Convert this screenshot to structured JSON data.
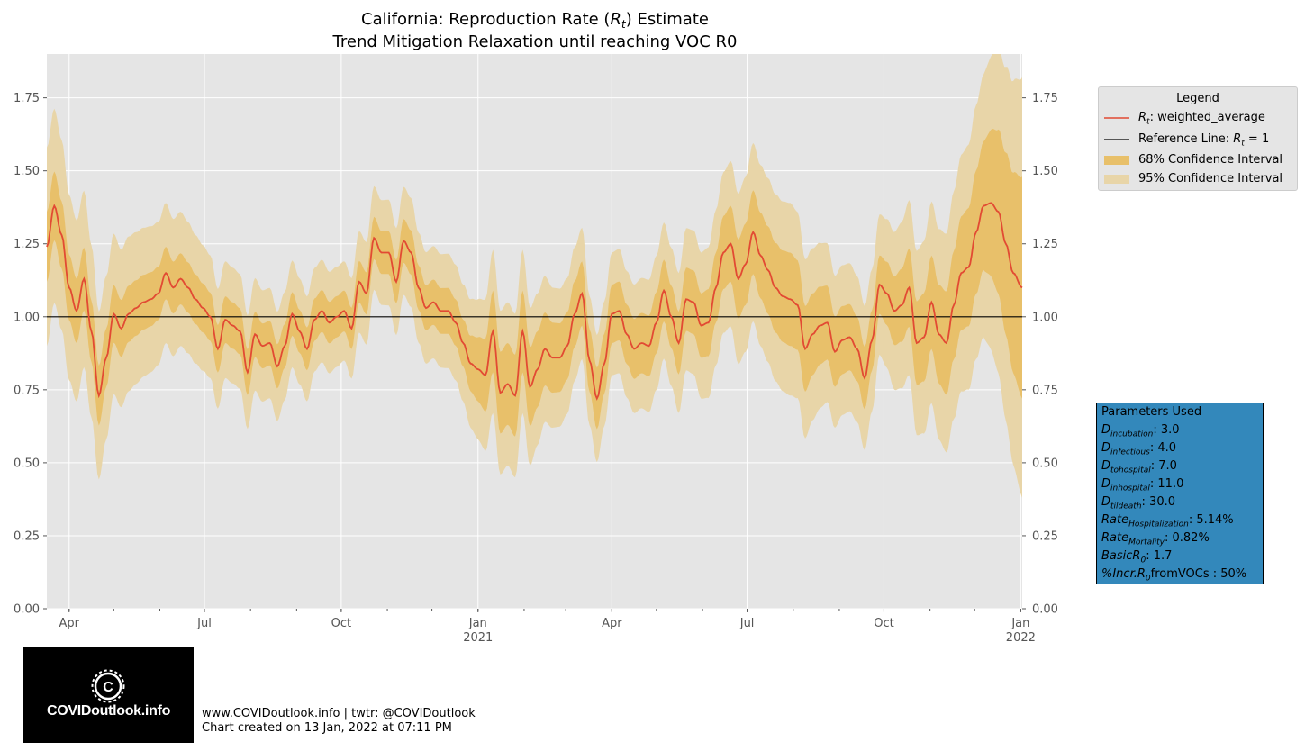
{
  "chart_data": {
    "type": "line",
    "title_line1": "California: Reproduction Rate (Rt) Estimate",
    "title_line2": "Trend Mitigation Relaxation until reaching VOC R0",
    "x_range": [
      "2020-03-17",
      "2022-01-02"
    ],
    "ylim": [
      0,
      1.9
    ],
    "y_ticks": [
      "0.00",
      "0.25",
      "0.50",
      "0.75",
      "1.00",
      "1.25",
      "1.50",
      "1.75"
    ],
    "x_ticks": [
      {
        "date": "2020-04-01",
        "label": "Apr",
        "sub": ""
      },
      {
        "date": "2020-07-01",
        "label": "Jul",
        "sub": ""
      },
      {
        "date": "2020-10-01",
        "label": "Oct",
        "sub": ""
      },
      {
        "date": "2021-01-01",
        "label": "Jan",
        "sub": "2021"
      },
      {
        "date": "2021-04-01",
        "label": "Apr",
        "sub": ""
      },
      {
        "date": "2021-07-01",
        "label": "Jul",
        "sub": ""
      },
      {
        "date": "2021-10-01",
        "label": "Oct",
        "sub": ""
      },
      {
        "date": "2022-01-01",
        "label": "Jan",
        "sub": "2022"
      }
    ],
    "reference_line": 1.0,
    "series": [
      {
        "name": "Rt: weighted_average",
        "color": "#e24a33",
        "points": [
          [
            "2020-03-17",
            1.24
          ],
          [
            "2020-03-22",
            1.38
          ],
          [
            "2020-03-27",
            1.28
          ],
          [
            "2020-04-01",
            1.1
          ],
          [
            "2020-04-06",
            1.02
          ],
          [
            "2020-04-11",
            1.13
          ],
          [
            "2020-04-16",
            0.95
          ],
          [
            "2020-04-21",
            0.73
          ],
          [
            "2020-04-26",
            0.86
          ],
          [
            "2020-05-01",
            1.01
          ],
          [
            "2020-05-06",
            0.96
          ],
          [
            "2020-05-11",
            1.01
          ],
          [
            "2020-05-16",
            1.03
          ],
          [
            "2020-05-21",
            1.05
          ],
          [
            "2020-05-26",
            1.06
          ],
          [
            "2020-05-31",
            1.08
          ],
          [
            "2020-06-05",
            1.15
          ],
          [
            "2020-06-10",
            1.1
          ],
          [
            "2020-06-15",
            1.13
          ],
          [
            "2020-06-20",
            1.1
          ],
          [
            "2020-06-25",
            1.06
          ],
          [
            "2020-06-30",
            1.03
          ],
          [
            "2020-07-05",
            1.0
          ],
          [
            "2020-07-10",
            0.89
          ],
          [
            "2020-07-15",
            0.99
          ],
          [
            "2020-07-20",
            0.97
          ],
          [
            "2020-07-25",
            0.95
          ],
          [
            "2020-07-30",
            0.81
          ],
          [
            "2020-08-04",
            0.94
          ],
          [
            "2020-08-09",
            0.9
          ],
          [
            "2020-08-14",
            0.91
          ],
          [
            "2020-08-19",
            0.83
          ],
          [
            "2020-08-24",
            0.9
          ],
          [
            "2020-08-29",
            1.01
          ],
          [
            "2020-09-03",
            0.95
          ],
          [
            "2020-09-08",
            0.89
          ],
          [
            "2020-09-13",
            0.99
          ],
          [
            "2020-09-18",
            1.02
          ],
          [
            "2020-09-23",
            0.98
          ],
          [
            "2020-09-28",
            1.0
          ],
          [
            "2020-10-03",
            1.02
          ],
          [
            "2020-10-08",
            0.96
          ],
          [
            "2020-10-13",
            1.12
          ],
          [
            "2020-10-18",
            1.08
          ],
          [
            "2020-10-23",
            1.27
          ],
          [
            "2020-10-28",
            1.22
          ],
          [
            "2020-11-02",
            1.22
          ],
          [
            "2020-11-07",
            1.12
          ],
          [
            "2020-11-12",
            1.26
          ],
          [
            "2020-11-17",
            1.22
          ],
          [
            "2020-11-22",
            1.1
          ],
          [
            "2020-11-27",
            1.03
          ],
          [
            "2020-12-02",
            1.05
          ],
          [
            "2020-12-07",
            1.02
          ],
          [
            "2020-12-12",
            1.02
          ],
          [
            "2020-12-17",
            0.98
          ],
          [
            "2020-12-22",
            0.91
          ],
          [
            "2020-12-27",
            0.84
          ],
          [
            "2021-01-01",
            0.82
          ],
          [
            "2021-01-06",
            0.8
          ],
          [
            "2021-01-11",
            0.95
          ],
          [
            "2021-01-16",
            0.74
          ],
          [
            "2021-01-21",
            0.77
          ],
          [
            "2021-01-26",
            0.73
          ],
          [
            "2021-01-31",
            0.95
          ],
          [
            "2021-02-05",
            0.76
          ],
          [
            "2021-02-10",
            0.82
          ],
          [
            "2021-02-15",
            0.89
          ],
          [
            "2021-02-20",
            0.86
          ],
          [
            "2021-02-25",
            0.86
          ],
          [
            "2021-03-02",
            0.9
          ],
          [
            "2021-03-07",
            1.01
          ],
          [
            "2021-03-12",
            1.08
          ],
          [
            "2021-03-17",
            0.85
          ],
          [
            "2021-03-22",
            0.72
          ],
          [
            "2021-03-27",
            0.84
          ],
          [
            "2021-04-01",
            1.01
          ],
          [
            "2021-04-06",
            1.02
          ],
          [
            "2021-04-11",
            0.94
          ],
          [
            "2021-04-16",
            0.89
          ],
          [
            "2021-04-21",
            0.91
          ],
          [
            "2021-04-26",
            0.9
          ],
          [
            "2021-05-01",
            0.98
          ],
          [
            "2021-05-06",
            1.09
          ],
          [
            "2021-05-11",
            1.0
          ],
          [
            "2021-05-16",
            0.91
          ],
          [
            "2021-05-21",
            1.06
          ],
          [
            "2021-05-26",
            1.05
          ],
          [
            "2021-05-31",
            0.97
          ],
          [
            "2021-06-05",
            0.98
          ],
          [
            "2021-06-10",
            1.1
          ],
          [
            "2021-06-15",
            1.22
          ],
          [
            "2021-06-20",
            1.25
          ],
          [
            "2021-06-25",
            1.13
          ],
          [
            "2021-06-30",
            1.18
          ],
          [
            "2021-07-05",
            1.29
          ],
          [
            "2021-07-10",
            1.21
          ],
          [
            "2021-07-15",
            1.16
          ],
          [
            "2021-07-20",
            1.1
          ],
          [
            "2021-07-25",
            1.07
          ],
          [
            "2021-07-30",
            1.06
          ],
          [
            "2021-08-04",
            1.04
          ],
          [
            "2021-08-09",
            0.89
          ],
          [
            "2021-08-14",
            0.94
          ],
          [
            "2021-08-19",
            0.97
          ],
          [
            "2021-08-24",
            0.98
          ],
          [
            "2021-08-29",
            0.88
          ],
          [
            "2021-09-03",
            0.92
          ],
          [
            "2021-09-08",
            0.93
          ],
          [
            "2021-09-13",
            0.89
          ],
          [
            "2021-09-18",
            0.79
          ],
          [
            "2021-09-23",
            0.92
          ],
          [
            "2021-09-28",
            1.11
          ],
          [
            "2021-10-03",
            1.08
          ],
          [
            "2021-10-08",
            1.02
          ],
          [
            "2021-10-13",
            1.04
          ],
          [
            "2021-10-18",
            1.1
          ],
          [
            "2021-10-23",
            0.91
          ],
          [
            "2021-10-28",
            0.93
          ],
          [
            "2021-11-02",
            1.05
          ],
          [
            "2021-11-07",
            0.94
          ],
          [
            "2021-11-12",
            0.91
          ],
          [
            "2021-11-17",
            1.04
          ],
          [
            "2021-11-22",
            1.15
          ],
          [
            "2021-11-27",
            1.17
          ],
          [
            "2021-12-02",
            1.29
          ],
          [
            "2021-12-07",
            1.38
          ],
          [
            "2021-12-12",
            1.39
          ],
          [
            "2021-12-17",
            1.36
          ],
          [
            "2021-12-22",
            1.25
          ],
          [
            "2021-12-27",
            1.15
          ],
          [
            "2022-01-02",
            1.1
          ]
        ]
      }
    ],
    "legend": {
      "title": "Legend",
      "placement": "right, outside plot, top",
      "items": [
        {
          "label": "Rt: weighted_average",
          "kind": "line",
          "color": "#e24a33"
        },
        {
          "label": "Reference Line: Rt = 1",
          "kind": "line",
          "color": "#000000"
        },
        {
          "label": "68% Confidence Interval",
          "kind": "patch",
          "color": "#e8c06a"
        },
        {
          "label": "95% Confidence Interval",
          "kind": "patch",
          "color": "#e8d5a8"
        }
      ]
    },
    "bands": {
      "ci68_color": "#e8c06a",
      "ci95_color": "#e8d5a8",
      "ci68_half_width": [
        [
          0,
          0.12
        ],
        [
          40,
          0.1
        ],
        [
          120,
          0.08
        ],
        [
          200,
          0.07
        ],
        [
          280,
          0.08
        ],
        [
          300,
          0.14
        ],
        [
          320,
          0.14
        ],
        [
          340,
          0.12
        ],
        [
          380,
          0.1
        ],
        [
          440,
          0.11
        ],
        [
          470,
          0.14
        ],
        [
          500,
          0.16
        ],
        [
          530,
          0.12
        ],
        [
          560,
          0.1
        ],
        [
          630,
          0.22
        ],
        [
          656,
          0.38
        ]
      ],
      "ci95_half_width": [
        [
          0,
          0.34
        ],
        [
          40,
          0.28
        ],
        [
          120,
          0.2
        ],
        [
          200,
          0.17
        ],
        [
          280,
          0.2
        ],
        [
          300,
          0.28
        ],
        [
          320,
          0.28
        ],
        [
          340,
          0.24
        ],
        [
          380,
          0.21
        ],
        [
          440,
          0.25
        ],
        [
          470,
          0.3
        ],
        [
          500,
          0.33
        ],
        [
          530,
          0.26
        ],
        [
          560,
          0.24
        ],
        [
          630,
          0.45
        ],
        [
          656,
          0.72
        ]
      ]
    },
    "grid": true
  },
  "params": {
    "title": "Parameters Used",
    "items": [
      {
        "sym": "D",
        "sub": "incubation",
        "val": ": 3.0"
      },
      {
        "sym": "D",
        "sub": "infectious",
        "val": ": 4.0"
      },
      {
        "sym": "D",
        "sub": "tohospital",
        "val": ": 7.0"
      },
      {
        "sym": "D",
        "sub": "inhospital",
        "val": ": 11.0"
      },
      {
        "sym": "D",
        "sub": "tildeath",
        "val": ": 30.0"
      },
      {
        "sym": "Rate",
        "sub": "Hospitalization",
        "val": ": 5.14%"
      },
      {
        "sym": "Rate",
        "sub": "Mortality",
        "val": ": 0.82%"
      },
      {
        "sym": "BasicR",
        "sub": "0",
        "val": ": 1.7"
      },
      {
        "sym": "%Incr.R",
        "sub": "0",
        "val": "fromVOCs : 50%"
      }
    ]
  },
  "logo": {
    "text": "COVIDoutlook.info"
  },
  "footer": {
    "line1": "www.COVIDoutlook.info | twtr: @COVIDoutlook",
    "line2": "Chart created on 13 Jan, 2022 at 07:11 PM"
  }
}
